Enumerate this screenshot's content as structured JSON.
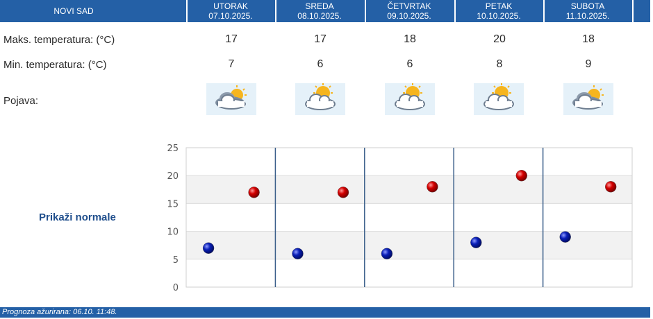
{
  "header": {
    "city": "NOVI SAD",
    "days": [
      {
        "name": "UTORAK",
        "date": "07.10.2025."
      },
      {
        "name": "SREDA",
        "date": "08.10.2025."
      },
      {
        "name": "ČETVRTAK",
        "date": "09.10.2025."
      },
      {
        "name": "PETAK",
        "date": "10.10.2025."
      },
      {
        "name": "SUBOTA",
        "date": "11.10.2025."
      }
    ]
  },
  "rows": {
    "max_label": "Maks. temperatura: (°C)",
    "min_label": "Min. temperatura: (°C)",
    "phenomenon_label": "Pojava:",
    "max": [
      "17",
      "17",
      "18",
      "20",
      "18"
    ],
    "min": [
      "7",
      "6",
      "6",
      "8",
      "9"
    ],
    "icons": [
      "partly-cloudy-icon",
      "partly-sunny-icon",
      "partly-sunny-icon",
      "partly-sunny-icon",
      "partly-cloudy-icon"
    ]
  },
  "normals_link": "Prikaži normale",
  "footer": {
    "text": "Prognoza ažurirana:  06.10. 11:48."
  },
  "colors": {
    "header_bg": "#2460a6",
    "max_marker": "#d40000",
    "min_marker": "#0a1fb8",
    "icon_bg": "#e5f1f9"
  },
  "chart_data": {
    "type": "scatter",
    "categories": [
      "UTORAK",
      "SREDA",
      "ČETVRTAK",
      "PETAK",
      "SUBOTA"
    ],
    "series": [
      {
        "values": [
          17,
          17,
          18,
          20,
          18
        ],
        "color": "#d40000"
      },
      {
        "values": [
          7,
          6,
          6,
          8,
          9
        ],
        "color": "#0a1fb8"
      }
    ],
    "ylim": [
      0,
      25
    ],
    "yticks": [
      0,
      5,
      10,
      15,
      20,
      25
    ],
    "grid": true
  }
}
